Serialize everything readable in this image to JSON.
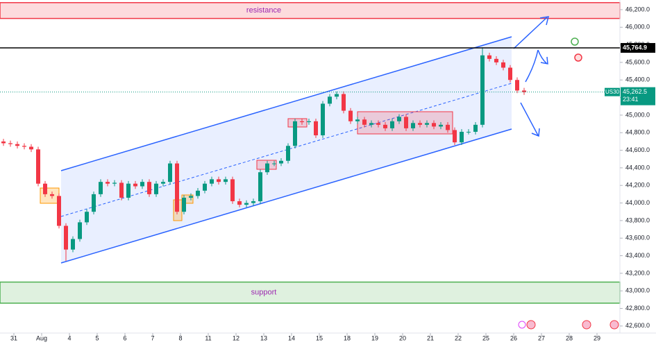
{
  "chart_data": {
    "type": "candlestick",
    "symbol": "US30",
    "countdown": "23:41",
    "x": [
      -0.375,
      -0.125,
      0.125,
      0.375,
      0.625,
      0.875,
      1.125,
      1.375,
      1.625,
      1.875,
      2.125,
      2.375,
      2.625,
      2.875,
      3.125,
      3.375,
      3.625,
      3.875,
      4.125,
      4.375,
      4.625,
      4.875,
      5.125,
      5.375,
      5.625,
      5.875,
      6.125,
      6.375,
      6.625,
      6.875,
      7.125,
      7.375,
      7.625,
      7.875,
      8.125,
      8.375,
      8.625,
      8.875,
      9.125,
      9.375,
      9.625,
      9.875,
      10.125,
      10.375,
      10.625,
      10.875,
      11.125,
      11.375,
      11.625,
      11.875,
      12.125,
      12.375,
      12.625,
      12.875,
      13.125,
      13.375,
      13.625,
      13.875,
      14.125,
      14.375,
      14.625,
      14.875,
      15.125,
      15.375,
      15.625,
      15.875,
      16.125,
      16.375,
      16.625,
      16.875,
      17.125,
      17.375,
      17.625,
      17.875,
      18.125,
      18.375
    ],
    "open": [
      44700,
      44680,
      44670,
      44650,
      44640,
      44610,
      44220,
      44100,
      44080,
      43740,
      43470,
      43590,
      43780,
      43900,
      44100,
      44240,
      44220,
      44230,
      44060,
      44220,
      44190,
      44240,
      44100,
      44220,
      44240,
      44450,
      43900,
      44060,
      44080,
      44140,
      44220,
      44270,
      44240,
      44270,
      44020,
      43980,
      44000,
      44020,
      44350,
      44450,
      44450,
      44480,
      44650,
      44930,
      44920,
      44930,
      44770,
      45130,
      45210,
      45240,
      45050,
      44930,
      44950,
      44890,
      44910,
      44890,
      44850,
      44930,
      44980,
      44850,
      44910,
      44890,
      44910,
      44870,
      44890,
      44830,
      44690,
      44810,
      44810,
      44890,
      45680,
      45640,
      45600,
      45540,
      45400,
      45280
    ],
    "high": [
      44730,
      44710,
      44700,
      44680,
      44670,
      44640,
      44250,
      44130,
      44110,
      43770,
      43620,
      43810,
      43930,
      44130,
      44270,
      44270,
      44260,
      44260,
      44250,
      44250,
      44270,
      44270,
      44250,
      44270,
      44480,
      44480,
      44090,
      44110,
      44170,
      44250,
      44300,
      44300,
      44300,
      44300,
      44050,
      44030,
      44050,
      44380,
      44480,
      44480,
      44510,
      44680,
      44960,
      44960,
      44960,
      44960,
      45160,
      45240,
      45270,
      45270,
      45080,
      44980,
      44980,
      44940,
      44940,
      44920,
      44960,
      45010,
      45010,
      44940,
      44940,
      44940,
      44940,
      44920,
      44920,
      44860,
      44840,
      44840,
      44920,
      45770,
      45710,
      45670,
      45630,
      45570,
      45430,
      45310
    ],
    "low": [
      44650,
      44640,
      44620,
      44610,
      44580,
      44190,
      44070,
      44050,
      43710,
      43340,
      43440,
      43560,
      43750,
      43870,
      44070,
      44190,
      44190,
      44030,
      44030,
      44160,
      44160,
      44070,
      44070,
      44190,
      44210,
      43870,
      43870,
      44030,
      44050,
      44110,
      44190,
      44210,
      44210,
      43990,
      43950,
      43950,
      43970,
      43990,
      44320,
      44420,
      44420,
      44450,
      44620,
      44890,
      44890,
      44740,
      44740,
      45100,
      45180,
      45020,
      44900,
      44900,
      44860,
      44860,
      44860,
      44820,
      44820,
      44900,
      44820,
      44820,
      44860,
      44860,
      44840,
      44840,
      44800,
      44660,
      44660,
      44780,
      44780,
      44860,
      45610,
      45570,
      45510,
      45370,
      45250,
      45230
    ],
    "close": [
      44680,
      44670,
      44650,
      44640,
      44610,
      44220,
      44100,
      44080,
      43740,
      43470,
      43590,
      43780,
      43900,
      44100,
      44240,
      44220,
      44230,
      44060,
      44220,
      44190,
      44240,
      44100,
      44220,
      44240,
      44450,
      43900,
      44060,
      44080,
      44140,
      44220,
      44270,
      44240,
      44270,
      44020,
      43980,
      44000,
      44020,
      44350,
      44450,
      44450,
      44480,
      44650,
      44930,
      44920,
      44930,
      44770,
      45130,
      45210,
      45240,
      45050,
      44930,
      44950,
      44890,
      44910,
      44890,
      44850,
      44930,
      44980,
      44850,
      44910,
      44890,
      44910,
      44870,
      44890,
      44830,
      44690,
      44810,
      44810,
      44890,
      45680,
      45640,
      45600,
      45540,
      45400,
      45280,
      45262.5
    ],
    "up_color": "#089981",
    "down_color": "#f23645",
    "xlim": [
      -0.5,
      21.825
    ],
    "ylim": [
      42520,
      46310
    ],
    "xticks": [
      {
        "value": 0,
        "label": "31"
      },
      {
        "value": 1,
        "label": "Aug"
      },
      {
        "value": 2,
        "label": "4"
      },
      {
        "value": 3,
        "label": "5"
      },
      {
        "value": 4,
        "label": "6"
      },
      {
        "value": 5,
        "label": "7"
      },
      {
        "value": 6,
        "label": "8"
      },
      {
        "value": 7,
        "label": "11"
      },
      {
        "value": 8,
        "label": "12"
      },
      {
        "value": 9,
        "label": "13"
      },
      {
        "value": 10,
        "label": "14"
      },
      {
        "value": 11,
        "label": "15"
      },
      {
        "value": 12,
        "label": "18"
      },
      {
        "value": 13,
        "label": "19"
      },
      {
        "value": 14,
        "label": "20"
      },
      {
        "value": 15,
        "label": "21"
      },
      {
        "value": 16,
        "label": "22"
      },
      {
        "value": 17,
        "label": "25"
      },
      {
        "value": 18,
        "label": "26"
      },
      {
        "value": 19,
        "label": "27"
      },
      {
        "value": 20,
        "label": "28"
      },
      {
        "value": 21,
        "label": "29"
      }
    ],
    "yticks": [
      {
        "value": 42600,
        "label": "42,600.0"
      },
      {
        "value": 42800,
        "label": "42,800.0"
      },
      {
        "value": 43000,
        "label": "43,000.0"
      },
      {
        "value": 43200,
        "label": "43,200.0"
      },
      {
        "value": 43400,
        "label": "43,400.0"
      },
      {
        "value": 43600,
        "label": "43,600.0"
      },
      {
        "value": 43800,
        "label": "43,800.0"
      },
      {
        "value": 44000,
        "label": "44,000.0"
      },
      {
        "value": 44200,
        "label": "44,200.0"
      },
      {
        "value": 44400,
        "label": "44,400.0"
      },
      {
        "value": 44600,
        "label": "44,600.0"
      },
      {
        "value": 44800,
        "label": "44,800.0"
      },
      {
        "value": 45000,
        "label": "45,000.0"
      },
      {
        "value": 45200,
        "label": "45,200.0"
      },
      {
        "value": 45400,
        "label": "45,400.0"
      },
      {
        "value": 45600,
        "label": "45,600.0"
      },
      {
        "value": 45800,
        "label": "45,800.0"
      },
      {
        "value": 46000,
        "label": "46,000.0"
      },
      {
        "value": 46200,
        "label": "46,200.0"
      }
    ],
    "grid": false,
    "level": {
      "value": 45764.9,
      "label": "45,764.9",
      "color": "#000000"
    },
    "current_price": {
      "value": 45262.5,
      "label": "45,262.5",
      "color": "#089981"
    },
    "zones": [
      {
        "label": "resistance",
        "range": [
          46100,
          46280
        ],
        "color": "#f23645"
      },
      {
        "label": "support",
        "range": [
          42860,
          43100
        ],
        "color": "#4caf50"
      }
    ]
  }
}
